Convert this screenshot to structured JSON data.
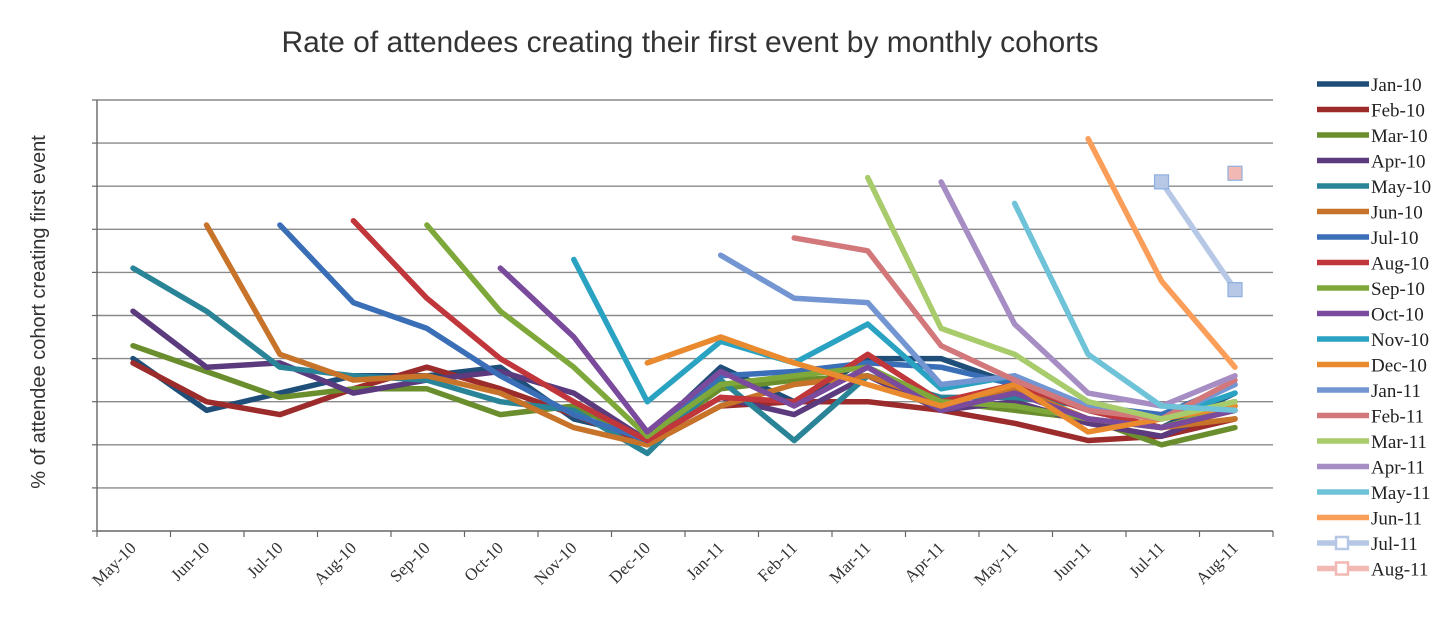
{
  "chart_data": {
    "type": "line",
    "title": "Rate of attendees creating their first event by monthly cohorts",
    "ylabel": "% of attendee cohort creating first event",
    "xlabel": "",
    "categories": [
      "May-10",
      "Jun-10",
      "Jul-10",
      "Aug-10",
      "Sep-10",
      "Oct-10",
      "Nov-10",
      "Dec-10",
      "Jan-11",
      "Feb-11",
      "Mar-11",
      "Apr-11",
      "May-11",
      "Jun-11",
      "Jul-11",
      "Aug-11"
    ],
    "ylim": [
      0,
      10
    ],
    "y_tick_labels_shown": false,
    "grid": "horizontal",
    "legend_position": "right",
    "series": [
      {
        "name": "Jan-10",
        "color": "#1f4e79",
        "marker": "none",
        "values": [
          4.0,
          2.8,
          3.2,
          3.6,
          3.6,
          3.8,
          2.6,
          2.2,
          3.8,
          3.0,
          4.0,
          4.0,
          3.4,
          2.8,
          2.4,
          3.2
        ]
      },
      {
        "name": "Feb-10",
        "color": "#9c2b2b",
        "marker": "none",
        "values": [
          3.9,
          3.0,
          2.7,
          3.3,
          3.8,
          3.3,
          2.7,
          2.0,
          2.9,
          3.0,
          3.0,
          2.8,
          2.5,
          2.1,
          2.2,
          2.6
        ]
      },
      {
        "name": "Mar-10",
        "color": "#6a8e2e",
        "marker": "none",
        "values": [
          4.3,
          3.7,
          3.1,
          3.3,
          3.3,
          2.7,
          2.9,
          2.1,
          3.3,
          3.5,
          3.6,
          3.0,
          2.8,
          2.6,
          2.0,
          2.4
        ]
      },
      {
        "name": "Apr-10",
        "color": "#5b3a7e",
        "marker": "none",
        "values": [
          5.1,
          3.8,
          3.9,
          3.2,
          3.5,
          3.7,
          3.2,
          2.1,
          3.1,
          2.7,
          3.6,
          2.8,
          3.0,
          2.5,
          2.2,
          2.9
        ]
      },
      {
        "name": "May-10",
        "color": "#2a8497",
        "marker": "none",
        "values": [
          6.1,
          5.1,
          3.8,
          3.6,
          3.5,
          3.0,
          2.8,
          1.8,
          3.5,
          2.1,
          3.6,
          3.1,
          3.1,
          2.9,
          2.6,
          3.0
        ]
      },
      {
        "name": "Jun-10",
        "color": "#c7742a",
        "marker": "none",
        "values": [
          null,
          7.1,
          4.1,
          3.5,
          3.6,
          3.2,
          2.4,
          2.0,
          2.9,
          3.4,
          3.6,
          3.0,
          3.3,
          2.6,
          2.4,
          2.6
        ]
      },
      {
        "name": "Jul-10",
        "color": "#3a6fb8",
        "marker": "none",
        "values": [
          null,
          null,
          7.1,
          5.3,
          4.7,
          3.6,
          2.7,
          2.1,
          3.6,
          3.7,
          3.9,
          3.8,
          3.4,
          2.9,
          2.7,
          3.4
        ]
      },
      {
        "name": "Aug-10",
        "color": "#c0363a",
        "marker": "none",
        "values": [
          null,
          null,
          null,
          7.2,
          5.4,
          4.0,
          3.0,
          2.1,
          3.1,
          3.0,
          4.1,
          3.0,
          3.4,
          2.8,
          2.4,
          2.8
        ]
      },
      {
        "name": "Sep-10",
        "color": "#7fa83a",
        "marker": "none",
        "values": [
          null,
          null,
          null,
          null,
          7.1,
          5.1,
          3.8,
          2.2,
          3.4,
          3.6,
          3.8,
          3.0,
          2.9,
          2.6,
          2.4,
          2.9
        ]
      },
      {
        "name": "Oct-10",
        "color": "#7a4a9c",
        "marker": "none",
        "values": [
          null,
          null,
          null,
          null,
          null,
          6.1,
          4.5,
          2.3,
          3.7,
          2.9,
          3.8,
          2.8,
          3.2,
          2.6,
          2.4,
          2.8
        ]
      },
      {
        "name": "Nov-10",
        "color": "#2aa3c2",
        "marker": "none",
        "values": [
          null,
          null,
          null,
          null,
          null,
          null,
          6.3,
          3.0,
          4.4,
          3.9,
          4.8,
          3.3,
          3.6,
          2.9,
          2.6,
          3.2
        ]
      },
      {
        "name": "Dec-10",
        "color": "#ea8a2e",
        "marker": "none",
        "values": [
          null,
          null,
          null,
          null,
          null,
          null,
          null,
          3.9,
          4.5,
          3.9,
          3.4,
          2.9,
          3.4,
          2.3,
          2.6,
          2.9
        ]
      },
      {
        "name": "Jan-11",
        "color": "#7396d2",
        "marker": "none",
        "values": [
          null,
          null,
          null,
          null,
          null,
          null,
          null,
          null,
          6.4,
          5.4,
          5.3,
          3.4,
          3.6,
          2.9,
          2.6,
          3.4
        ]
      },
      {
        "name": "Feb-11",
        "color": "#d2787a",
        "marker": "none",
        "values": [
          null,
          null,
          null,
          null,
          null,
          null,
          null,
          null,
          null,
          6.8,
          6.5,
          4.3,
          3.5,
          2.8,
          2.6,
          3.5
        ]
      },
      {
        "name": "Mar-11",
        "color": "#a8cb6c",
        "marker": "none",
        "values": [
          null,
          null,
          null,
          null,
          null,
          null,
          null,
          null,
          null,
          null,
          8.2,
          4.7,
          4.1,
          3.0,
          2.6,
          3.0
        ]
      },
      {
        "name": "Apr-11",
        "color": "#a68ec4",
        "marker": "none",
        "values": [
          null,
          null,
          null,
          null,
          null,
          null,
          null,
          null,
          null,
          null,
          null,
          8.1,
          4.8,
          3.2,
          2.9,
          3.6
        ]
      },
      {
        "name": "May-11",
        "color": "#6ec3d8",
        "marker": "none",
        "values": [
          null,
          null,
          null,
          null,
          null,
          null,
          null,
          null,
          null,
          null,
          null,
          null,
          7.6,
          4.1,
          2.9,
          2.8
        ]
      },
      {
        "name": "Jun-11",
        "color": "#fa9e5a",
        "marker": "none",
        "values": [
          null,
          null,
          null,
          null,
          null,
          null,
          null,
          null,
          null,
          null,
          null,
          null,
          null,
          9.1,
          5.8,
          3.8
        ]
      },
      {
        "name": "Jul-11",
        "color": "#b6c8e6",
        "marker": "square",
        "values": [
          null,
          null,
          null,
          null,
          null,
          null,
          null,
          null,
          null,
          null,
          null,
          null,
          null,
          null,
          8.1,
          5.6
        ]
      },
      {
        "name": "Aug-11",
        "color": "#f2b8b4",
        "marker": "square",
        "values": [
          null,
          null,
          null,
          null,
          null,
          null,
          null,
          null,
          null,
          null,
          null,
          null,
          null,
          null,
          null,
          8.3
        ]
      }
    ]
  }
}
